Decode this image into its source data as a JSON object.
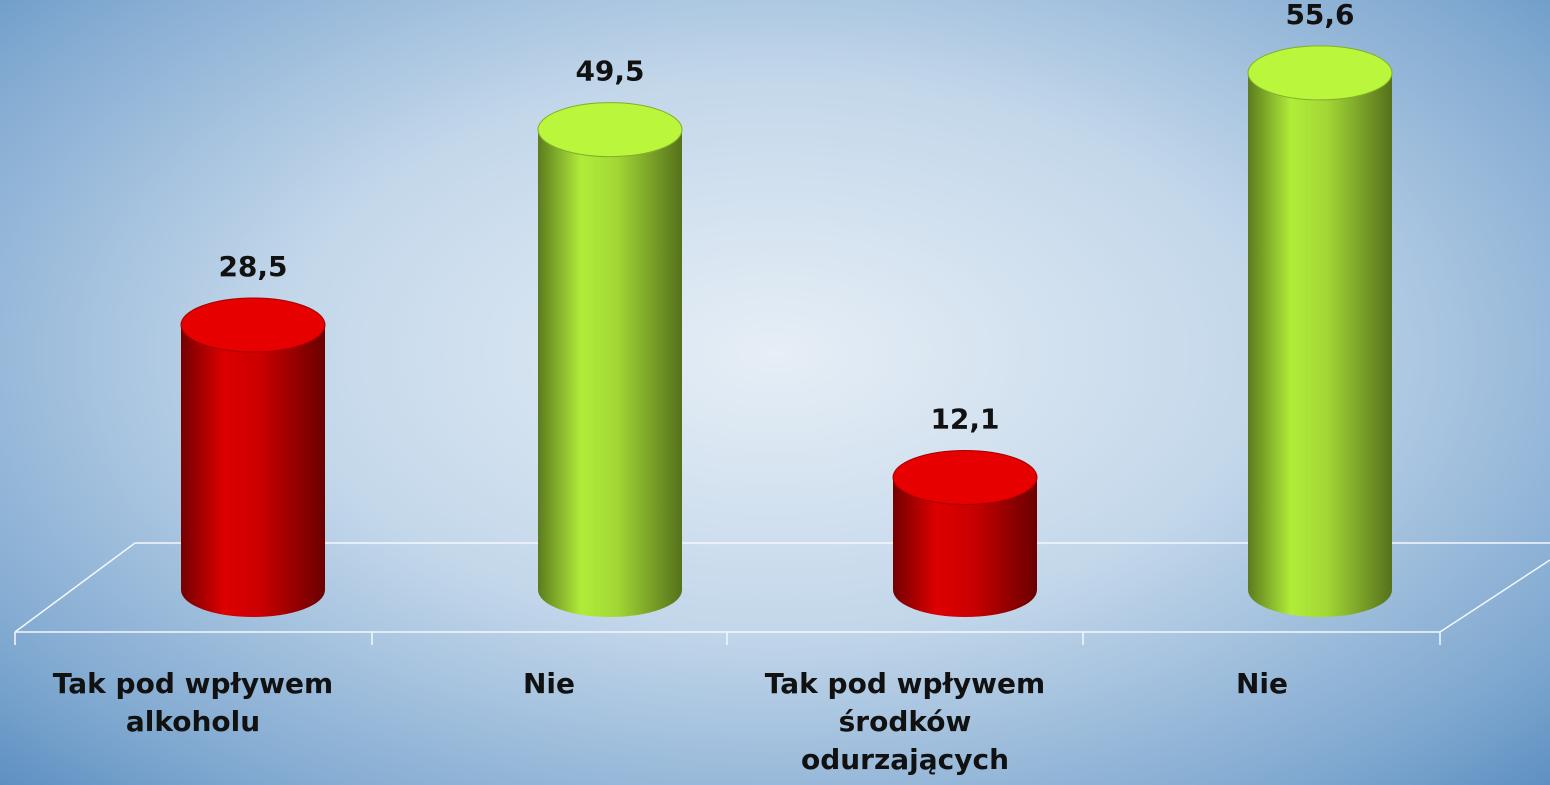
{
  "chart_data": {
    "type": "bar3d",
    "categories": [
      "Tak pod wpływem alkoholu",
      "Nie",
      "Tak pod wpływem środków odurzających",
      "Nie"
    ],
    "values": [
      28.5,
      49.5,
      12.1,
      55.6
    ],
    "value_labels": [
      "28,5",
      "49,5",
      "12,1",
      "55,6"
    ],
    "colors": [
      "#c00000",
      "#9acd32",
      "#c00000",
      "#9acd32"
    ]
  }
}
